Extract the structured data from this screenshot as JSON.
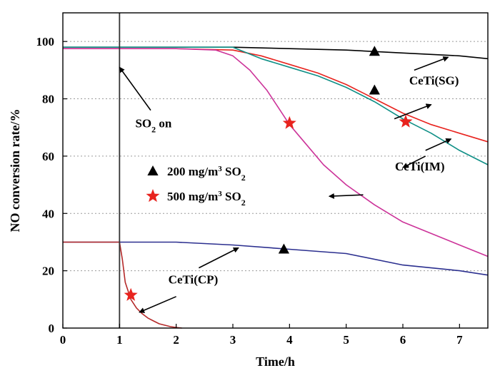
{
  "chart_data": {
    "type": "line",
    "xlabel": "Time/h",
    "ylabel": "NO conversion rate/%",
    "xlim": [
      0,
      7.5
    ],
    "ylim": [
      0,
      110
    ],
    "x_ticks": [
      0,
      1,
      2,
      3,
      4,
      5,
      6,
      7
    ],
    "y_ticks": [
      0,
      20,
      40,
      60,
      80,
      100
    ],
    "grid": "horizontal dotted",
    "so2_on_time": 1,
    "series": [
      {
        "group": "200 mg/m³ SO₂",
        "color": "#000000",
        "x": [
          0,
          1,
          2,
          3,
          4,
          5,
          6,
          7,
          7.5
        ],
        "y": [
          98,
          98,
          98,
          98,
          97.5,
          97,
          96,
          95,
          94
        ]
      },
      {
        "group": "500 mg/m³ SO₂",
        "color": "#e8231e",
        "x": [
          0,
          1,
          2,
          3,
          3.5,
          4,
          4.5,
          5,
          5.5,
          6,
          6.5,
          7,
          7.5
        ],
        "y": [
          97.5,
          97.5,
          97.5,
          97,
          95,
          92,
          89,
          85,
          80,
          75,
          71,
          68,
          65
        ]
      },
      {
        "group": "200 mg/m³ SO₂",
        "color": "#0f8f86",
        "x": [
          0,
          1,
          2,
          3,
          3.5,
          4,
          4.5,
          5,
          5.5,
          6,
          6.5,
          7,
          7.5
        ],
        "y": [
          98,
          98,
          98,
          98,
          94,
          91,
          88,
          84,
          79,
          73,
          68,
          62,
          57
        ]
      },
      {
        "group": "500 mg/m³ SO₂",
        "color": "#cc3399",
        "x": [
          0,
          1,
          2,
          2.7,
          3,
          3.3,
          3.6,
          3.8,
          4,
          4.3,
          4.6,
          5,
          5.5,
          6,
          6.5,
          7,
          7.5
        ],
        "y": [
          97.5,
          97.5,
          97.5,
          97,
          95,
          90,
          83,
          77,
          71,
          64,
          57,
          50,
          43,
          37,
          33,
          29,
          25
        ]
      },
      {
        "group": "200 mg/m³ SO₂",
        "color": "#2b2f8f",
        "x": [
          0,
          1,
          2,
          3,
          4,
          5,
          6,
          7,
          7.5
        ],
        "y": [
          30,
          30,
          30,
          29,
          27.5,
          26,
          22,
          20,
          18.5
        ]
      },
      {
        "group": "500 mg/m³ SO₂",
        "color": "#b52a2a",
        "x": [
          0,
          1,
          1.05,
          1.1,
          1.2,
          1.3,
          1.4,
          1.5,
          1.6,
          1.7,
          1.8,
          1.9,
          2.0,
          2.1
        ],
        "y": [
          30,
          30,
          24,
          16,
          10,
          7,
          5,
          3.5,
          2.5,
          1.5,
          1,
          0.5,
          0.2,
          0
        ]
      }
    ],
    "markers": [
      {
        "shape": "triangle",
        "x": 5.5,
        "y": 96.5
      },
      {
        "shape": "triangle",
        "x": 5.5,
        "y": 83
      },
      {
        "shape": "triangle",
        "x": 3.9,
        "y": 27.5
      },
      {
        "shape": "star",
        "x": 4.0,
        "y": 71.5
      },
      {
        "shape": "star",
        "x": 6.05,
        "y": 72
      },
      {
        "shape": "star",
        "x": 1.2,
        "y": 11.5
      }
    ],
    "legend": [
      {
        "shape": "triangle",
        "color": "#000000",
        "label": "200 mg/m³ SO₂"
      },
      {
        "shape": "star",
        "color": "#e8231e",
        "label": "500 mg/m³ SO₂"
      }
    ],
    "annotations": [
      {
        "text": "SO₂ on",
        "label_at": [
          1.6,
          70
        ],
        "arrow_from": [
          1.55,
          76
        ],
        "arrow_to": [
          1.0,
          91
        ]
      },
      {
        "text": "CeTi(SG)",
        "label_at": [
          6.55,
          85
        ],
        "arrow_from": [
          6.2,
          90
        ],
        "arrow_to": [
          6.8,
          94.5
        ]
      },
      {
        "text": "CeTi(IM)",
        "label_at": [
          6.3,
          55
        ],
        "arrow_from": [
          6.4,
          62
        ],
        "arrow_to": [
          6.85,
          66
        ]
      },
      {
        "text": "CeTi(IM)",
        "arrow_from": [
          5.85,
          73
        ],
        "arrow_to": [
          6.5,
          78
        ]
      },
      {
        "text": "CeTi(IM)",
        "arrow_from": [
          5.3,
          46.5
        ],
        "arrow_to": [
          4.7,
          46
        ]
      },
      {
        "text": "CeTi(IM)",
        "arrow_from": [
          6.4,
          60
        ],
        "arrow_to": [
          6.0,
          56
        ]
      },
      {
        "text": "CeTi(CP)",
        "label_at": [
          2.3,
          15.5
        ],
        "arrow_from": [
          2.4,
          21
        ],
        "arrow_to": [
          3.1,
          28
        ]
      },
      {
        "text": "CeTi(CP)",
        "arrow_from": [
          2.0,
          11
        ],
        "arrow_to": [
          1.35,
          5.5
        ]
      }
    ]
  }
}
